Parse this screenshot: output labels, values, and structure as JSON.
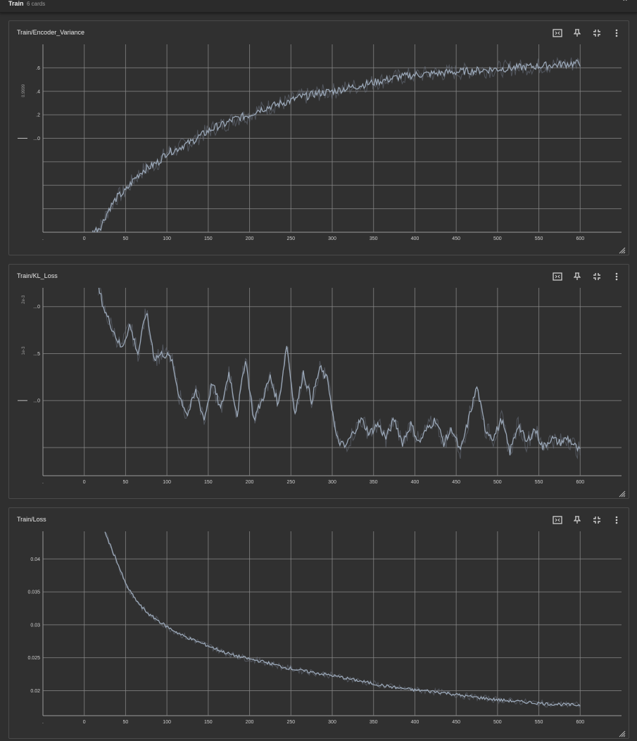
{
  "header": {
    "title": "Train",
    "count": "6 cards"
  },
  "icons": {
    "collapse": "chevron-up-icon",
    "fit": "fit-domain-icon",
    "pin": "pin-icon",
    "fullscreen": "minimize-icon",
    "menu": "more-vert-icon",
    "resize": "resize-handle-icon"
  },
  "colors": {
    "line": "#9aa7b7",
    "line_raw": "#6f7785",
    "grid": "#8a8a8a",
    "card_bg": "#303030"
  },
  "chart_data": [
    {
      "type": "line",
      "title": "Train/Encoder_Variance",
      "x_ticks": [
        "0",
        "50",
        "100",
        "150",
        "200",
        "250",
        "300",
        "350",
        "400",
        "450",
        "500",
        "550",
        "600"
      ],
      "y_ticks": [
        ".6",
        ".4",
        ".2",
        "...0"
      ],
      "y_offset_label": "0.9999",
      "xlim": [
        -50,
        650
      ],
      "ylim": [
        -0.8,
        0.8
      ],
      "y_tick_values": [
        0.6,
        0.4,
        0.2,
        0.0
      ],
      "extra_grid": [
        -0.2,
        -0.4,
        -0.6
      ],
      "series": [
        {
          "x": [
            10,
            20,
            30,
            40,
            50,
            60,
            70,
            80,
            90,
            100,
            110,
            120,
            130,
            140,
            150,
            160,
            170,
            180,
            190,
            200,
            210,
            220,
            230,
            240,
            250,
            260,
            270,
            280,
            290,
            300,
            320,
            340,
            360,
            380,
            400,
            420,
            440,
            460,
            480,
            500,
            520,
            540,
            560,
            580,
            600
          ],
          "values": [
            -0.8,
            -0.75,
            -0.6,
            -0.5,
            -0.45,
            -0.35,
            -0.28,
            -0.24,
            -0.2,
            -0.12,
            -0.1,
            -0.06,
            -0.03,
            0.02,
            0.06,
            0.1,
            0.12,
            0.16,
            0.18,
            0.2,
            0.24,
            0.26,
            0.28,
            0.3,
            0.32,
            0.35,
            0.36,
            0.38,
            0.39,
            0.4,
            0.43,
            0.46,
            0.49,
            0.52,
            0.54,
            0.55,
            0.56,
            0.57,
            0.58,
            0.59,
            0.6,
            0.61,
            0.62,
            0.63,
            0.64
          ]
        }
      ]
    },
    {
      "type": "line",
      "title": "Train/KL_Loss",
      "x_ticks": [
        "0",
        "50",
        "100",
        "150",
        "200",
        "250",
        "300",
        "350",
        "400",
        "450",
        "500",
        "550",
        "600"
      ],
      "y_ticks": [
        "...0",
        "...5",
        "...0"
      ],
      "y_offset_labels": [
        "2e-3",
        "1e-3"
      ],
      "xlim": [
        -50,
        650
      ],
      "ylim": [
        -0.8,
        1.2
      ],
      "y_tick_values": [
        1.0,
        0.5,
        0.0
      ],
      "extra_grid": [
        -0.5
      ],
      "series": [
        {
          "x": [
            17,
            25,
            35,
            45,
            55,
            65,
            75,
            85,
            95,
            105,
            115,
            125,
            135,
            145,
            155,
            165,
            175,
            185,
            195,
            205,
            215,
            225,
            235,
            245,
            255,
            265,
            275,
            285,
            295,
            305,
            315,
            325,
            335,
            345,
            355,
            365,
            375,
            385,
            395,
            405,
            415,
            425,
            435,
            445,
            455,
            465,
            475,
            485,
            495,
            505,
            515,
            525,
            535,
            545,
            555,
            565,
            575,
            585,
            595,
            600
          ],
          "values": [
            1.2,
            0.95,
            0.75,
            0.55,
            0.8,
            0.5,
            0.95,
            0.45,
            0.5,
            0.45,
            0.05,
            -0.15,
            0.1,
            -0.2,
            0.2,
            -0.1,
            0.3,
            -0.15,
            0.45,
            -0.2,
            0.0,
            0.25,
            -0.05,
            0.6,
            -0.15,
            0.3,
            0.0,
            0.35,
            0.2,
            -0.4,
            -0.5,
            -0.35,
            -0.2,
            -0.35,
            -0.25,
            -0.4,
            -0.2,
            -0.45,
            -0.25,
            -0.45,
            -0.3,
            -0.2,
            -0.45,
            -0.3,
            -0.55,
            -0.2,
            0.15,
            -0.3,
            -0.4,
            -0.2,
            -0.55,
            -0.25,
            -0.45,
            -0.3,
            -0.5,
            -0.4,
            -0.45,
            -0.4,
            -0.5,
            -0.55
          ]
        }
      ]
    },
    {
      "type": "line",
      "title": "Train/Loss",
      "x_ticks": [
        "0",
        "50",
        "100",
        "150",
        "200",
        "250",
        "300",
        "350",
        "400",
        "450",
        "500",
        "550",
        "600"
      ],
      "y_ticks": [
        "0.04",
        "0.035",
        "0.03",
        "0.025",
        "0.02"
      ],
      "xlim": [
        -50,
        650
      ],
      "ylim": [
        0.0162,
        0.0442
      ],
      "y_tick_values": [
        0.04,
        0.035,
        0.03,
        0.025,
        0.02
      ],
      "series": [
        {
          "x": [
            25,
            30,
            40,
            50,
            60,
            70,
            80,
            90,
            100,
            110,
            120,
            130,
            140,
            150,
            160,
            170,
            180,
            190,
            200,
            220,
            240,
            260,
            280,
            300,
            320,
            340,
            360,
            380,
            400,
            420,
            440,
            460,
            480,
            500,
            520,
            540,
            560,
            580,
            600
          ],
          "values": [
            0.044,
            0.0425,
            0.0395,
            0.0362,
            0.0342,
            0.0326,
            0.0314,
            0.0306,
            0.0297,
            0.029,
            0.0283,
            0.0278,
            0.0273,
            0.0268,
            0.0263,
            0.0258,
            0.0254,
            0.0251,
            0.0248,
            0.0243,
            0.0236,
            0.0231,
            0.0227,
            0.0223,
            0.0218,
            0.0213,
            0.0208,
            0.0204,
            0.0201,
            0.0199,
            0.0196,
            0.0192,
            0.0189,
            0.0186,
            0.0184,
            0.0182,
            0.018,
            0.0179,
            0.0178
          ]
        }
      ]
    }
  ]
}
